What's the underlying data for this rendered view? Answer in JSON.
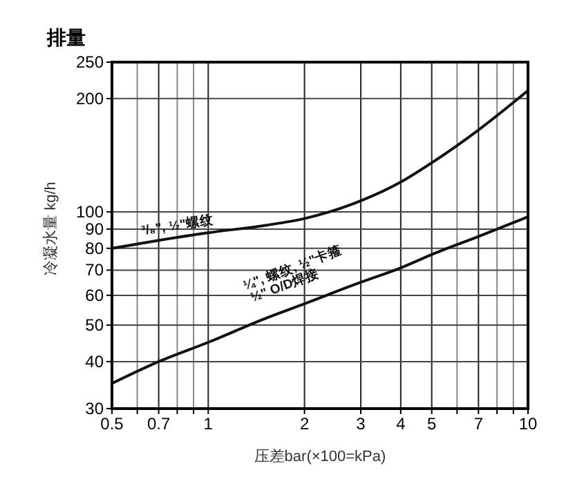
{
  "chart_data": {
    "type": "line",
    "title": "排量",
    "xlabel": "压差bar(×100=kPa)",
    "ylabel": "冷凝水量 kg/h",
    "log": "xy",
    "grid": true,
    "marker": "none",
    "line_style": "solid",
    "xlim": [
      0.5,
      10
    ],
    "ylim": [
      30,
      250
    ],
    "xticks": [
      0.5,
      {
        "value": 0.6,
        "label": null
      },
      0.7,
      {
        "value": 0.8,
        "label": null
      },
      {
        "value": 0.9,
        "label": null
      },
      1,
      2,
      3,
      4,
      5,
      {
        "value": 6,
        "label": null
      },
      7,
      {
        "value": 8,
        "label": null
      },
      {
        "value": 9,
        "label": null
      },
      10
    ],
    "yticks": [
      30,
      40,
      50,
      60,
      70,
      80,
      90,
      100,
      200,
      250
    ],
    "x": [
      0.5,
      0.7,
      1,
      1.5,
      2,
      3,
      4,
      5,
      7,
      10
    ],
    "series": [
      {
        "name": "³/₈\", ½\"螺纹",
        "color": "#111111",
        "values": [
          80,
          84,
          88,
          92,
          96,
          107,
          120,
          135,
          165,
          210
        ]
      },
      {
        "name": "¼\", 螺纹, ½\"卡箍\n½\" O/D焊接",
        "color": "#111111",
        "values": [
          35,
          40,
          45,
          52,
          57,
          65,
          71,
          77,
          86,
          97
        ]
      }
    ]
  }
}
